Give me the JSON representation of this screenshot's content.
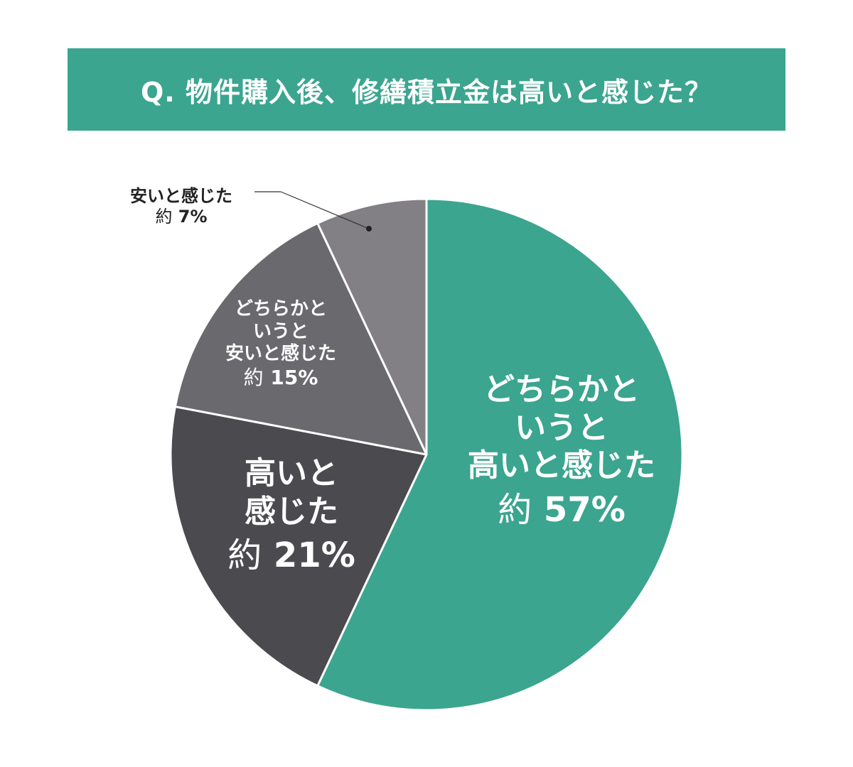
{
  "colors": {
    "title_bg": "#3ba58f",
    "very_high": "#3ba58f",
    "high": "#4b4a4e",
    "low": "#6a696d",
    "very_low": "#828085"
  },
  "chart_data": {
    "type": "pie",
    "title": "Q. 物件購入後、修繕積立金は高いと感じた？",
    "slices": [
      {
        "name": "どちらかというと高いと感じた",
        "lines": [
          "どちらかと",
          "いうと",
          "高いと感じた"
        ],
        "prefix": "約",
        "value_label": "57%",
        "value": 57,
        "color": "#3ba58f"
      },
      {
        "name": "高いと感じた",
        "lines": [
          "高いと",
          "感じた"
        ],
        "prefix": "約",
        "value_label": "21%",
        "value": 21,
        "color": "#4b4a4e"
      },
      {
        "name": "どちらかというと安いと感じた",
        "lines": [
          "どちらかと",
          "いうと",
          "安いと感じた"
        ],
        "prefix": "約",
        "value_label": "15%",
        "value": 15,
        "color": "#6a696d"
      },
      {
        "name": "安いと感じた",
        "lines": [
          "安いと感じた"
        ],
        "prefix": "約",
        "value_label": "7%",
        "value": 7,
        "color": "#828085"
      }
    ]
  }
}
